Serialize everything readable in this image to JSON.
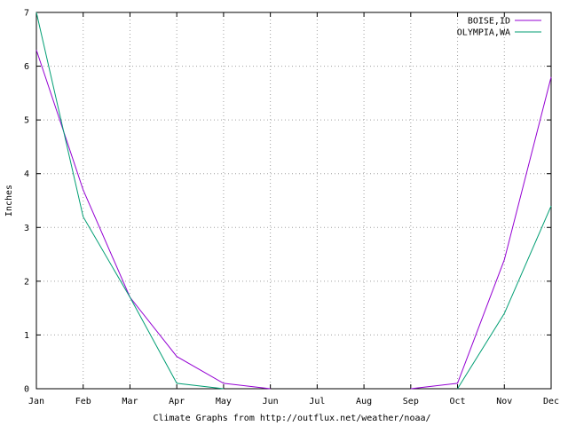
{
  "chart_data": {
    "type": "line",
    "title": "",
    "xlabel": "Climate Graphs from http://outflux.net/weather/noaa/",
    "ylabel": "Inches",
    "categories": [
      "Jan",
      "Feb",
      "Mar",
      "Apr",
      "May",
      "Jun",
      "Jul",
      "Aug",
      "Sep",
      "Oct",
      "Nov",
      "Dec"
    ],
    "yticks": [
      "0",
      "1",
      "2",
      "3",
      "4",
      "5",
      "6",
      "7"
    ],
    "ylim": [
      0,
      7
    ],
    "grid": true,
    "legend_position": "top-right",
    "series": [
      {
        "name": "BOISE,ID",
        "color": "#9400d3",
        "values": [
          6.3,
          3.7,
          1.7,
          0.6,
          0.1,
          0.0,
          null,
          null,
          0.0,
          0.1,
          2.4,
          5.8
        ]
      },
      {
        "name": "OLYMPIA,WA",
        "color": "#009e73",
        "values": [
          7.0,
          3.2,
          1.7,
          0.1,
          0.0,
          null,
          null,
          null,
          null,
          0.0,
          1.4,
          3.4
        ]
      }
    ]
  }
}
